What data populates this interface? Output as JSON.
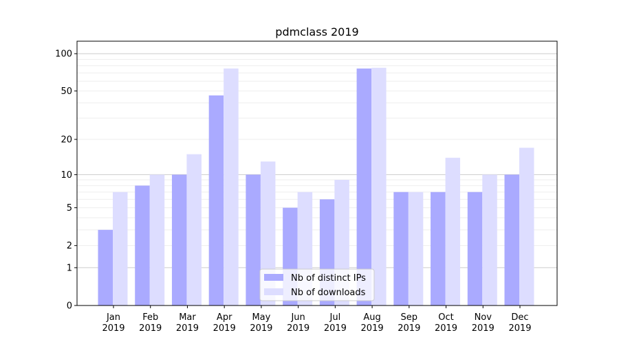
{
  "chart_data": {
    "type": "bar",
    "title": "pdmclass 2019",
    "xlabel": "",
    "ylabel": "",
    "yscale": "log(1+y)",
    "ylim": [
      0,
      120
    ],
    "yticks": [
      0,
      1,
      2,
      5,
      10,
      20,
      50,
      100
    ],
    "categories": [
      "Jan\n2019",
      "Feb\n2019",
      "Mar\n2019",
      "Apr\n2019",
      "May\n2019",
      "Jun\n2019",
      "Jul\n2019",
      "Aug\n2019",
      "Sep\n2019",
      "Oct\n2019",
      "Nov\n2019",
      "Dec\n2019"
    ],
    "series": [
      {
        "name": "Nb of distinct IPs",
        "color": "#aaaaff",
        "values": [
          3,
          8,
          10,
          46,
          10,
          5,
          6,
          76,
          7,
          7,
          7,
          10
        ]
      },
      {
        "name": "Nb of downloads",
        "color": "#ddddff",
        "values": [
          7,
          10,
          15,
          76,
          13,
          7,
          9,
          77,
          7,
          14,
          10,
          17
        ]
      }
    ],
    "grid": true,
    "legend_position": "bottom-center"
  }
}
